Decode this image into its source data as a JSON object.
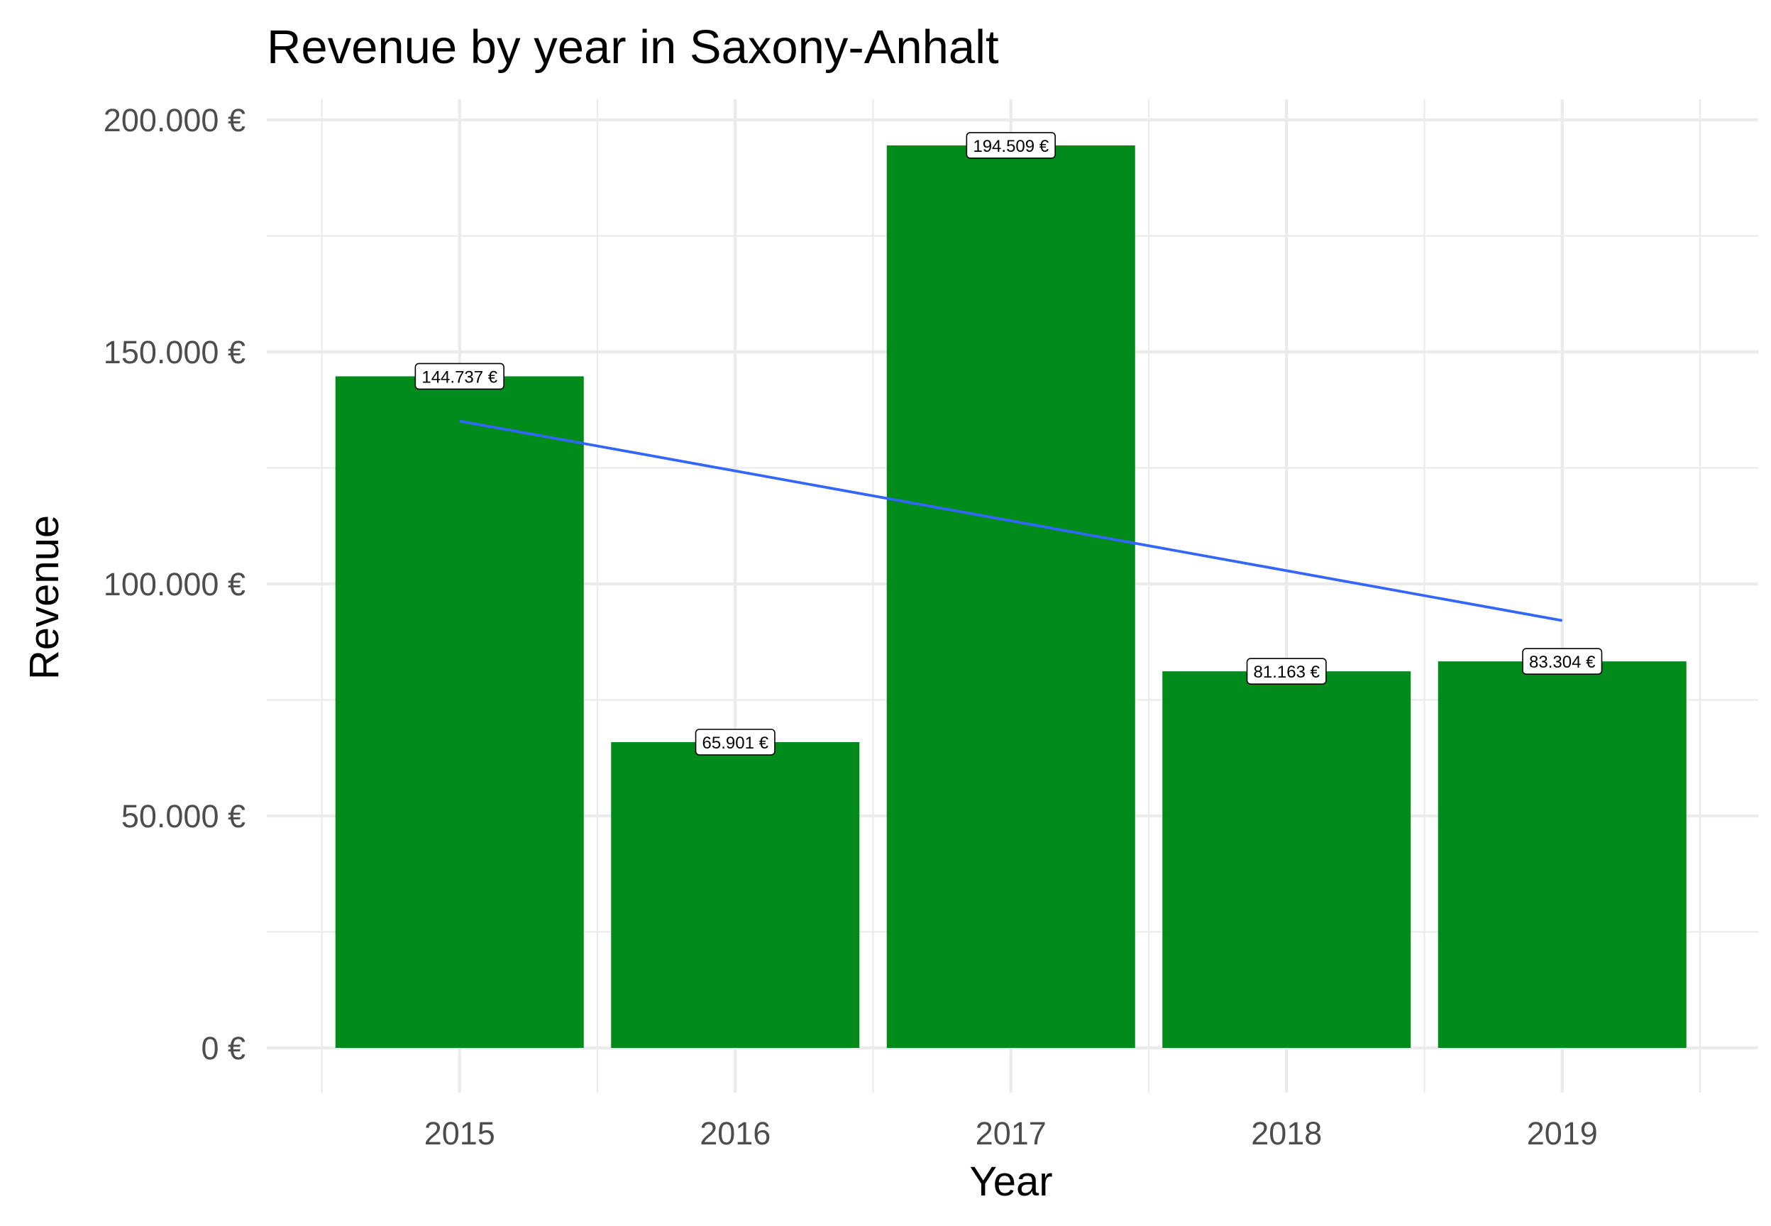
{
  "chart_data": {
    "type": "bar",
    "title": "Revenue by year in Saxony-Anhalt",
    "xlabel": "Year",
    "ylabel": "Revenue",
    "categories": [
      "2015",
      "2016",
      "2017",
      "2018",
      "2019"
    ],
    "values": [
      144737,
      65901,
      194509,
      81163,
      83304
    ],
    "data_labels": [
      "144.737 €",
      "65.901 €",
      "194.509 €",
      "81.163 €",
      "83.304 €"
    ],
    "yticks": [
      0,
      50000,
      100000,
      150000,
      200000
    ],
    "ytick_labels": [
      "0 €",
      "50.000 €",
      "100.000 €",
      "150.000 €",
      "200.000 €"
    ],
    "ylim": [
      0,
      200000
    ],
    "grid": true,
    "trend_line": {
      "type": "linear",
      "x": [
        "2015",
        "2019"
      ],
      "y": [
        135100,
        92100
      ]
    },
    "colors": {
      "bar": "#008b1a",
      "trend": "#3366ff",
      "grid": "#ebebeb",
      "tick_text": "#4d4d4d"
    }
  }
}
